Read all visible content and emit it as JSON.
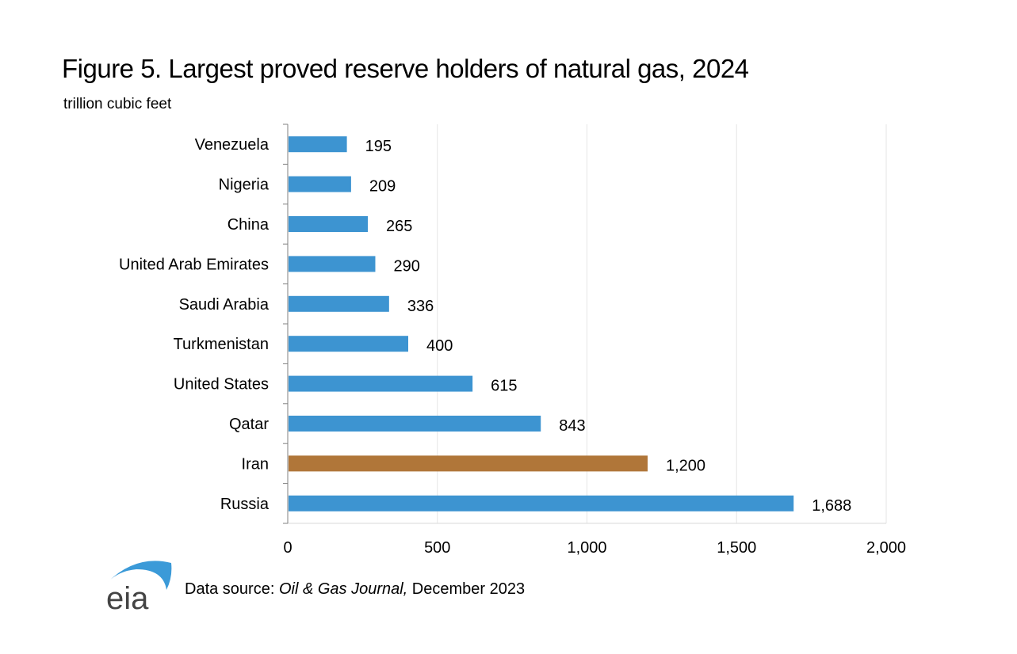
{
  "chart_data": {
    "type": "bar",
    "orientation": "horizontal",
    "title": "Figure 5. Largest  proved reserve holders of natural  gas, 2024",
    "ylabel": "trillion  cubic feet",
    "xlabel": "",
    "categories": [
      "Venezuela",
      "Nigeria",
      "China",
      "United Arab Emirates",
      "Saudi Arabia",
      "Turkmenistan",
      "United States",
      "Qatar",
      "Iran",
      "Russia"
    ],
    "values": [
      195,
      209,
      265,
      290,
      336,
      400,
      615,
      843,
      1200,
      1688
    ],
    "data_labels": [
      "195",
      "209",
      "265",
      "290",
      "336",
      "400",
      "615",
      "843",
      "1,200",
      "1,688"
    ],
    "highlight": "Iran",
    "xlim": [
      0,
      2000
    ],
    "xticks": [
      0,
      500,
      1000,
      1500,
      2000
    ],
    "xtick_labels": [
      "0",
      "500",
      "1,000",
      "1,500",
      "2,000"
    ],
    "grid": "vertical",
    "colors": {
      "bar": "#3d94d1",
      "highlight": "#b07639",
      "grid": "#e6e6e6",
      "axis": "#808080"
    }
  },
  "footer": {
    "logo_text": "eia",
    "source_prefix": "Data source: ",
    "source_italic": "Oil & Gas Journal,",
    "source_suffix": " December 2023"
  }
}
